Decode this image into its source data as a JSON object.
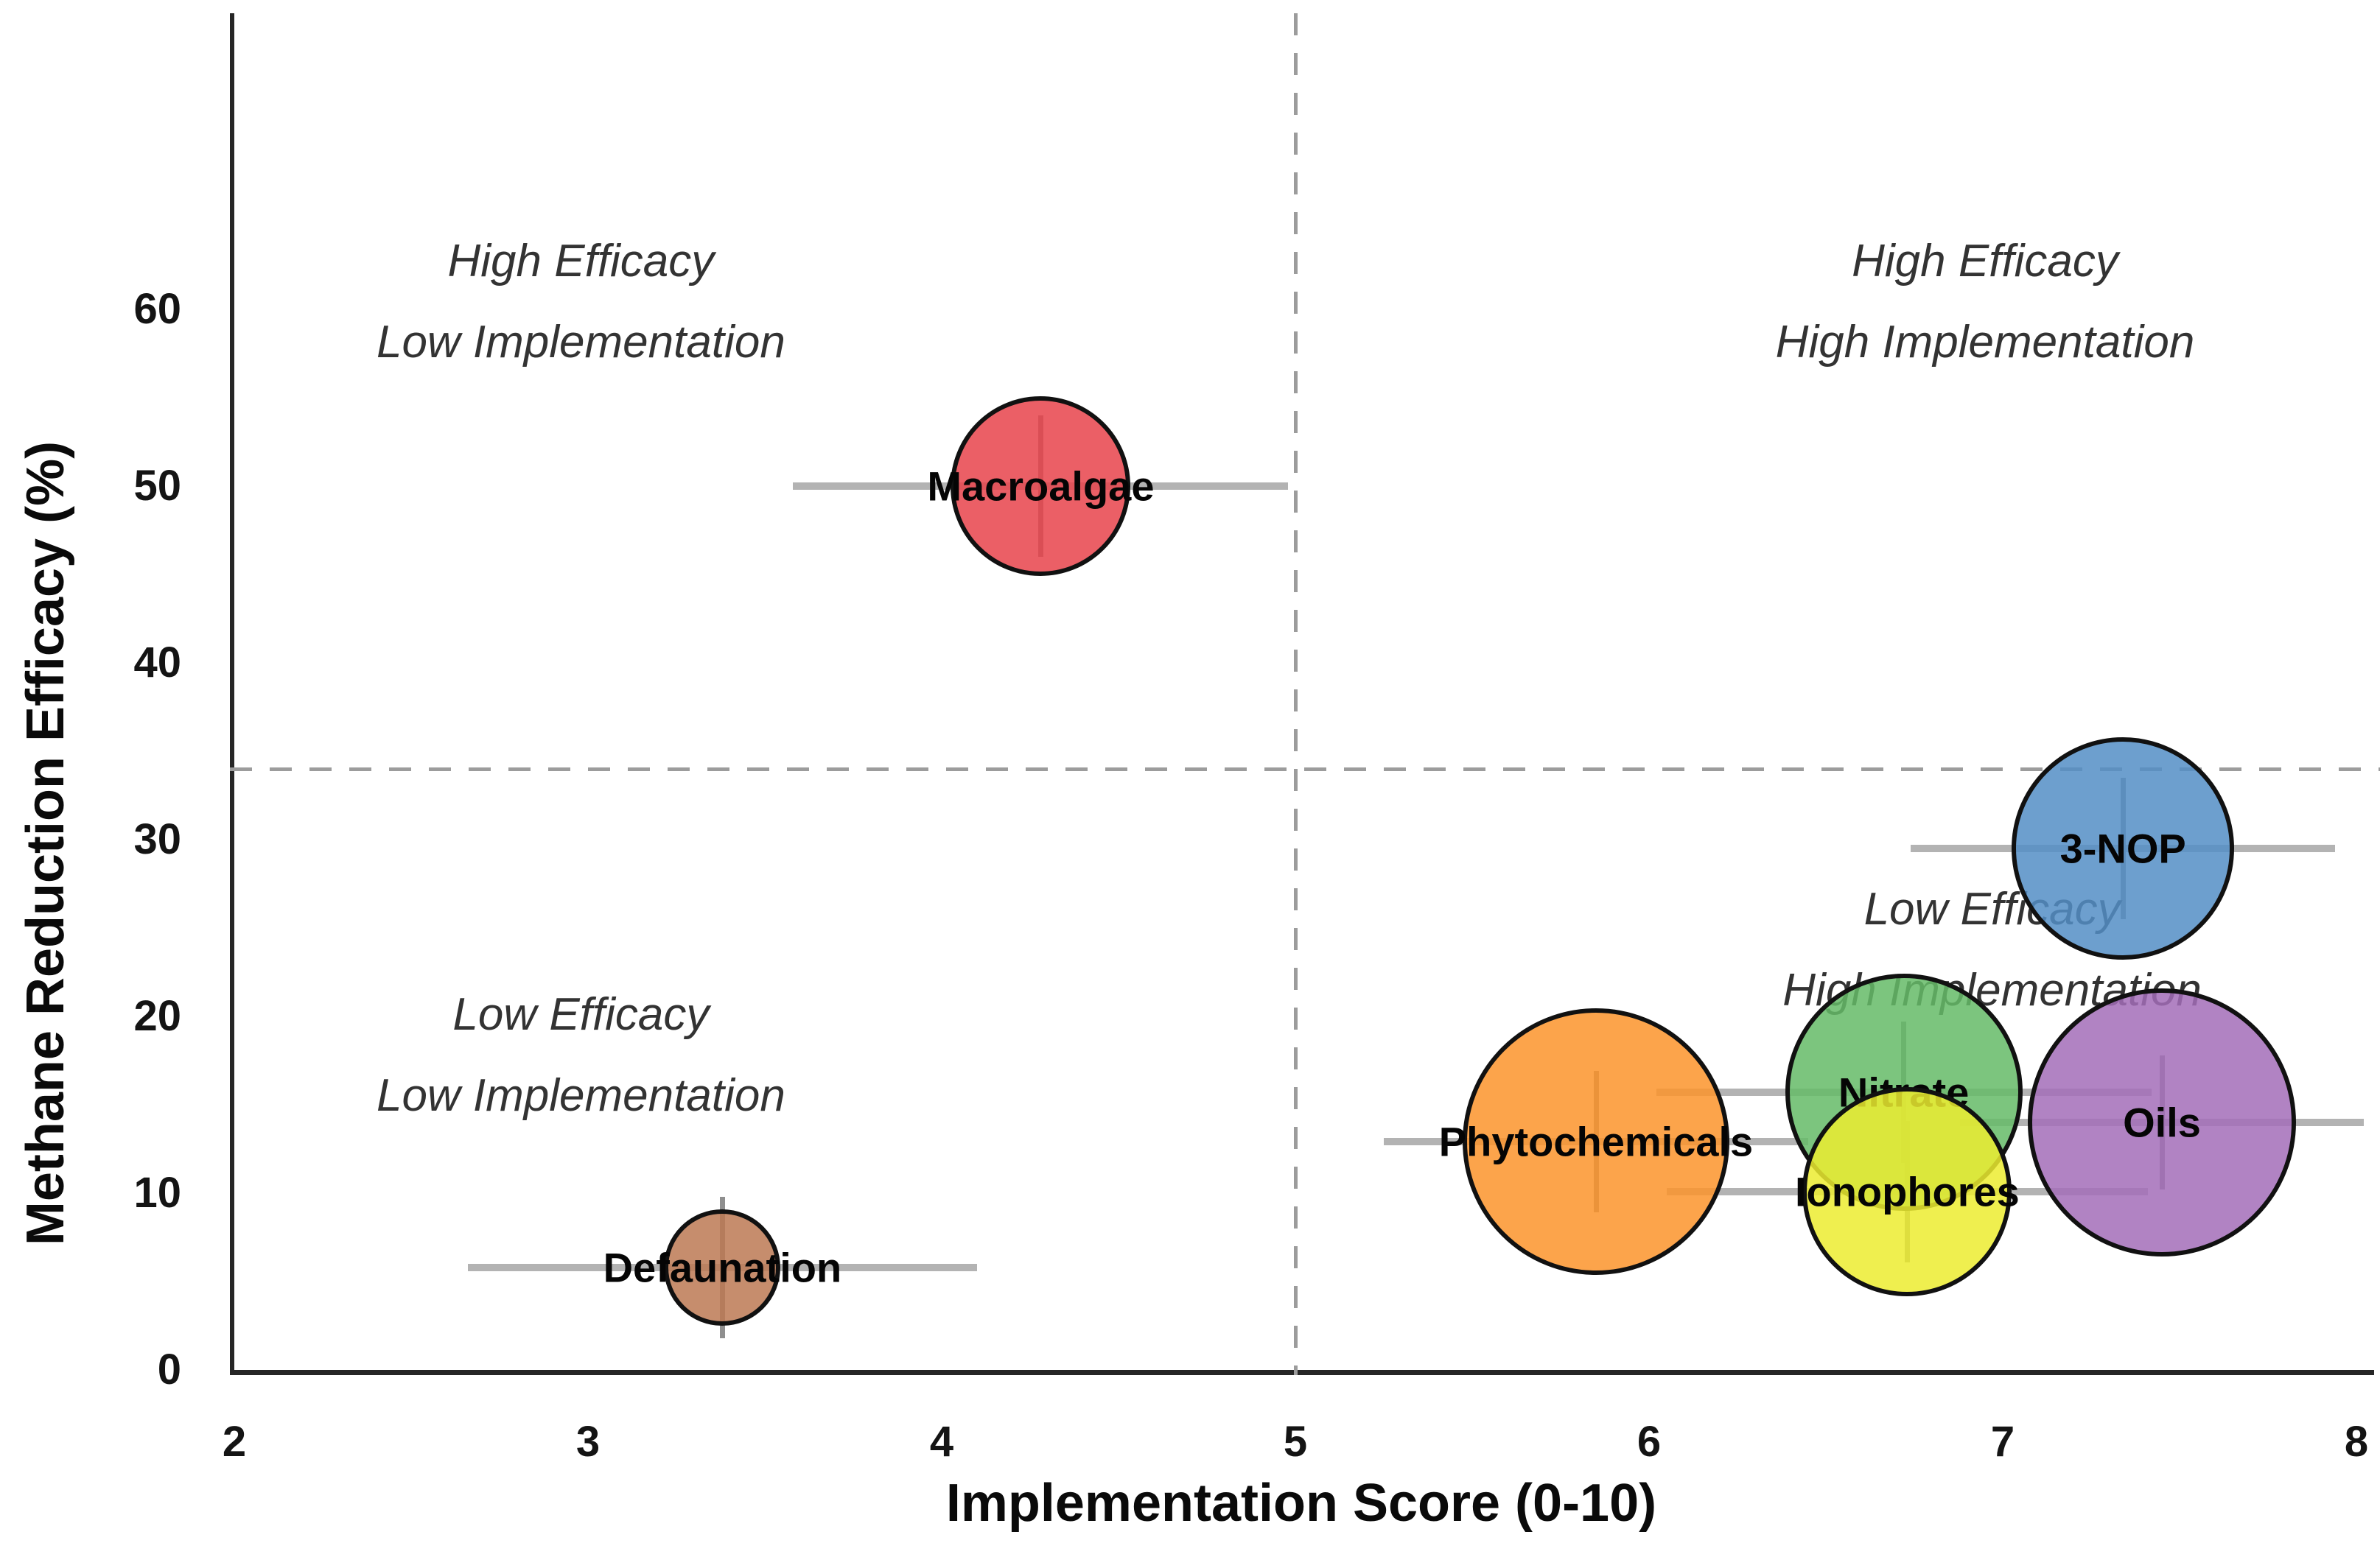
{
  "figure": {
    "background": "#ffffff",
    "axis_color": "#262626",
    "tick_color": "#141414",
    "bubble_label_color": "#050505",
    "quadrant_text_color": "#333333",
    "errorbar_h_color": "#b3b3b3",
    "errorbar_v_color": "#8f8f8f",
    "threshold_dash_color": "#9c9c9c"
  },
  "chart_data": {
    "type": "scatter",
    "title": "",
    "xlabel": "Implementation Score (0-10)",
    "ylabel": "Methane Reduction Efficacy (%)",
    "xlim": [
      2,
      8
    ],
    "ylim": [
      0,
      76
    ],
    "grid": false,
    "legend": "none",
    "xticks": [
      2,
      3,
      4,
      5,
      6,
      7,
      8
    ],
    "yticks": [
      0,
      10,
      20,
      30,
      40,
      50,
      60
    ],
    "threshold_x": 5,
    "threshold_y": 34,
    "points": [
      {
        "label": "Macroalgae",
        "x": 4.28,
        "y": 50.0,
        "xerr": 0.7,
        "yerr": 4.0,
        "radius_px": 122,
        "color": "#e8434b",
        "label_behind": false
      },
      {
        "label": "Defaunation",
        "x": 3.38,
        "y": 5.8,
        "xerr": 0.72,
        "yerr": 4.0,
        "radius_px": 79,
        "color": "#bc7953",
        "label_behind": false
      },
      {
        "label": "3-NOP",
        "x": 7.34,
        "y": 29.5,
        "xerr": 0.6,
        "yerr": 4.0,
        "radius_px": 151,
        "color": "#538ec5",
        "label_behind": false
      },
      {
        "label": "Phytochemicals",
        "x": 5.85,
        "y": 12.9,
        "xerr": 0.6,
        "yerr": 4.0,
        "radius_px": 181,
        "color": "#fc942c",
        "label_behind": false
      },
      {
        "label": "Nitrate",
        "x": 6.72,
        "y": 15.7,
        "xerr": 0.7,
        "yerr": 4.0,
        "radius_px": 161,
        "color": "#65bb67",
        "label_behind": true
      },
      {
        "label": "Oils",
        "x": 7.45,
        "y": 14.0,
        "xerr": 0.57,
        "yerr": 3.8,
        "radius_px": 182,
        "color": "#a36db9",
        "label_behind": false
      },
      {
        "label": "Ionophores",
        "x": 6.73,
        "y": 10.1,
        "xerr": 0.68,
        "yerr": 4.0,
        "radius_px": 142,
        "color": "#ecec30",
        "label_behind": false
      }
    ],
    "annotations": [
      {
        "lines": [
          "High Efficacy",
          "Low Implementation"
        ],
        "x": 2.98,
        "y": 60.4
      },
      {
        "lines": [
          "High Efficacy",
          "High Implementation"
        ],
        "x": 6.95,
        "y": 60.4
      },
      {
        "lines": [
          "Low Efficacy",
          "Low Implementation"
        ],
        "x": 2.98,
        "y": 17.8
      },
      {
        "lines": [
          "Low Efficacy",
          "High Implementation"
        ],
        "x": 6.97,
        "y": 23.75
      }
    ],
    "bubble_alpha": 0.85
  }
}
